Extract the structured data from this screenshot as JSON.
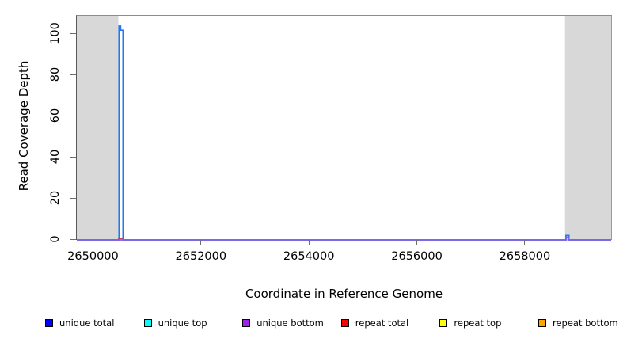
{
  "chart_data": {
    "type": "line",
    "title": "",
    "xlabel": "Coordinate in Reference Genome",
    "ylabel": "Read Coverage Depth",
    "xlim": [
      2649700,
      2659600
    ],
    "ylim": [
      0,
      109
    ],
    "grid": false,
    "x_ticks": [
      2650000,
      2652000,
      2654000,
      2656000,
      2658000
    ],
    "x_tick_labels": [
      "2650000",
      "2652000",
      "2654000",
      "2656000",
      "2658000"
    ],
    "y_ticks": [
      0,
      20,
      40,
      60,
      80,
      100
    ],
    "y_tick_labels": [
      "0",
      "20",
      "40",
      "60",
      "80",
      "100"
    ],
    "shaded_regions": [
      {
        "name": "left-masked-region",
        "x0": 2649700,
        "x1": 2650470,
        "color": "#d8d8d8"
      },
      {
        "name": "right-masked-region",
        "x0": 2658745,
        "x1": 2659600,
        "color": "#d8d8d8"
      }
    ],
    "series": [
      {
        "name": "repeat top",
        "legend_color": "#ffff00",
        "line_color": "#ffff00",
        "line_width": 1,
        "points": [
          [
            2649700,
            0
          ],
          [
            2659600,
            0
          ]
        ]
      },
      {
        "name": "repeat bottom",
        "legend_color": "#ffa500",
        "line_color": "#ffa500",
        "line_width": 1,
        "points": [
          [
            2649700,
            0
          ],
          [
            2659600,
            0
          ]
        ]
      },
      {
        "name": "repeat total",
        "legend_color": "#ff0000",
        "line_color": "#ee3333",
        "line_width": 1.2,
        "points": [
          [
            2650470,
            0
          ],
          [
            2650470,
            0.6
          ],
          [
            2650562,
            0.6
          ],
          [
            2650562,
            0
          ]
        ]
      },
      {
        "name": "unique top",
        "legend_color": "#00ffff",
        "line_color": "#00e5ee",
        "line_width": 1,
        "points": [
          [
            2649700,
            0
          ],
          [
            2659600,
            0
          ]
        ]
      },
      {
        "name": "unique total",
        "legend_color": "#0000ff",
        "line_color": "#2277ee",
        "line_width": 1.7,
        "points": [
          [
            2649700,
            0
          ],
          [
            2650482,
            0
          ],
          [
            2650482,
            104
          ],
          [
            2650512,
            104
          ],
          [
            2650512,
            102
          ],
          [
            2650556,
            102
          ],
          [
            2650556,
            0
          ],
          [
            2658763,
            0
          ],
          [
            2658763,
            2.2
          ],
          [
            2658818,
            2.2
          ],
          [
            2658818,
            0
          ],
          [
            2659600,
            0
          ]
        ]
      },
      {
        "name": "unique bottom",
        "legend_color": "#a020f0",
        "line_color": "#7d63e8",
        "line_width": 1.7,
        "points": [
          [
            2649700,
            0
          ],
          [
            2658765,
            0
          ],
          [
            2658765,
            1.3
          ],
          [
            2658814,
            1.3
          ],
          [
            2658814,
            0
          ],
          [
            2659600,
            0
          ]
        ]
      }
    ],
    "legend": {
      "position": "bottom",
      "items": [
        {
          "label": "unique total",
          "color": "#0000ff"
        },
        {
          "label": "unique top",
          "color": "#00ffff"
        },
        {
          "label": "unique bottom",
          "color": "#a020f0"
        },
        {
          "label": "repeat total",
          "color": "#ff0000"
        },
        {
          "label": "repeat top",
          "color": "#ffff00"
        },
        {
          "label": "repeat bottom",
          "color": "#ffa500"
        }
      ]
    },
    "style": {
      "background": "#ffffff",
      "shade_color": "#d8d8d8",
      "frame_color": "#8c8c8c",
      "tick_color": "#6e6e6e",
      "text_color": "#000000"
    }
  }
}
